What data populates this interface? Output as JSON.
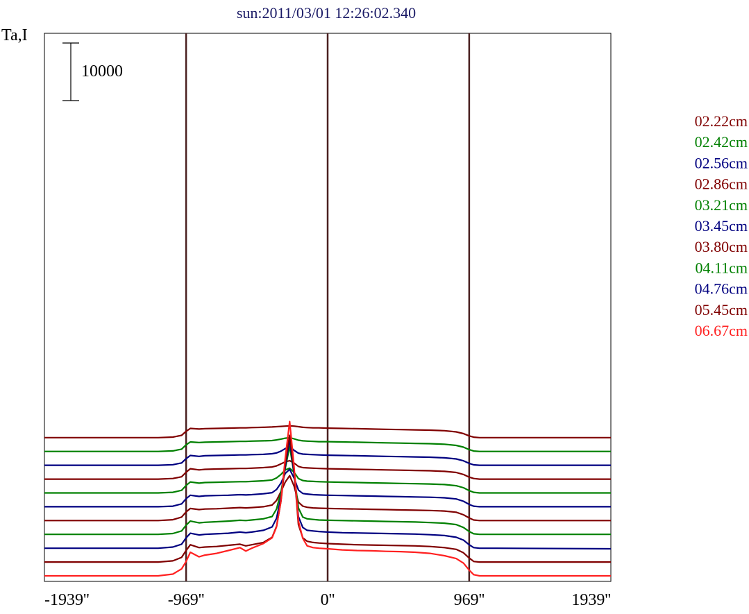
{
  "chart_data": {
    "type": "line",
    "title": "sun:2011/03/01 12:26:02.340",
    "title_color": "#1a1a66",
    "ylabel": "Ta,I",
    "x_unit": "arcsec",
    "xlim": [
      -1939,
      1939
    ],
    "x_ticks": [
      -1939,
      -969,
      0,
      969,
      1939
    ],
    "x_tick_labels": [
      "-1939''",
      "-969''",
      "0''",
      "969''",
      "1939''"
    ],
    "vertical_lines_at": [
      -969,
      0,
      969
    ],
    "vertical_line_color": "#4a2020",
    "scale_bar": {
      "label": "10000",
      "value": 10000
    },
    "stack_offset": 2400,
    "x": [
      -1939,
      -1160,
      -1060,
      -1000,
      -969,
      -940,
      -880,
      -840,
      -760,
      -680,
      -600,
      -560,
      -520,
      -440,
      -380,
      -350,
      -320,
      -290,
      -260,
      -230,
      -200,
      -170,
      -140,
      -100,
      -60,
      0,
      100,
      200,
      300,
      400,
      500,
      600,
      700,
      800,
      880,
      930,
      969,
      1000,
      1040,
      1160,
      1939
    ],
    "series": [
      {
        "name": "06.67cm",
        "color": "#ff2020",
        "baseline": 0,
        "values": [
          0,
          0,
          300,
          1200,
          2500,
          4100,
          3300,
          3600,
          3900,
          4400,
          4900,
          4300,
          4800,
          5600,
          6600,
          8500,
          13000,
          20500,
          26800,
          19000,
          9500,
          6500,
          5200,
          4900,
          4800,
          4700,
          4500,
          4400,
          4350,
          4250,
          4200,
          4100,
          3900,
          3500,
          3000,
          2200,
          1000,
          200,
          0,
          0,
          0
        ]
      },
      {
        "name": "05.45cm",
        "color": "#800000",
        "baseline": 2400,
        "values": [
          0,
          0,
          200,
          800,
          2000,
          3000,
          2500,
          2600,
          2700,
          2900,
          3100,
          2800,
          3000,
          3400,
          4300,
          6200,
          10500,
          17300,
          22000,
          16000,
          6500,
          4200,
          3600,
          3400,
          3300,
          3200,
          3100,
          3000,
          2950,
          2900,
          2850,
          2800,
          2700,
          2500,
          2200,
          1600,
          700,
          100,
          0,
          0,
          0
        ]
      },
      {
        "name": "04.76cm",
        "color": "#000080",
        "baseline": 4800,
        "values": [
          0,
          0,
          200,
          700,
          1800,
          2600,
          2300,
          2400,
          2500,
          2600,
          2800,
          2700,
          2800,
          3100,
          3700,
          5200,
          8800,
          14300,
          18900,
          13000,
          5500,
          3600,
          3100,
          3000,
          2900,
          2800,
          2700,
          2650,
          2600,
          2550,
          2500,
          2450,
          2350,
          2200,
          1900,
          1400,
          600,
          100,
          0,
          0,
          -100
        ]
      },
      {
        "name": "04.11cm",
        "color": "#008000",
        "baseline": 7200,
        "values": [
          0,
          0,
          150,
          600,
          1600,
          2300,
          2000,
          2100,
          2200,
          2300,
          2450,
          2400,
          2500,
          2700,
          3100,
          4400,
          7300,
          11500,
          15300,
          10500,
          4600,
          3000,
          2700,
          2600,
          2500,
          2450,
          2400,
          2350,
          2300,
          2250,
          2200,
          2150,
          2050,
          1950,
          1700,
          1200,
          500,
          100,
          0,
          0,
          0
        ]
      },
      {
        "name": "03.80cm",
        "color": "#800000",
        "baseline": 9600,
        "values": [
          0,
          0,
          150,
          600,
          1500,
          2100,
          1900,
          2000,
          2050,
          2150,
          2250,
          2200,
          2250,
          2400,
          2700,
          3500,
          5000,
          6700,
          7800,
          6000,
          3200,
          2500,
          2300,
          2200,
          2150,
          2100,
          2050,
          2000,
          1950,
          1900,
          1850,
          1800,
          1750,
          1650,
          1450,
          1000,
          450,
          100,
          0,
          0,
          0
        ]
      },
      {
        "name": "03.45cm",
        "color": "#000080",
        "baseline": 12000,
        "values": [
          0,
          0,
          100,
          500,
          1400,
          2000,
          1800,
          1900,
          1950,
          2000,
          2100,
          2050,
          2100,
          2250,
          2450,
          3000,
          4100,
          5800,
          6500,
          5000,
          2900,
          2300,
          2200,
          2100,
          2050,
          2000,
          1950,
          1900,
          1850,
          1800,
          1750,
          1700,
          1650,
          1550,
          1350,
          950,
          400,
          100,
          0,
          0,
          0
        ]
      },
      {
        "name": "03.21cm",
        "color": "#008000",
        "baseline": 14400,
        "values": [
          0,
          0,
          100,
          450,
          1300,
          1900,
          1700,
          1800,
          1850,
          1900,
          1950,
          1950,
          2000,
          2100,
          2250,
          2600,
          3200,
          4000,
          4300,
          3600,
          2500,
          2150,
          2050,
          2000,
          1950,
          1900,
          1850,
          1800,
          1750,
          1700,
          1650,
          1600,
          1550,
          1450,
          1250,
          900,
          400,
          100,
          0,
          0,
          0
        ]
      },
      {
        "name": "02.86cm",
        "color": "#800000",
        "baseline": 16800,
        "values": [
          0,
          0,
          100,
          400,
          1200,
          1800,
          1600,
          1700,
          1750,
          1800,
          1850,
          1850,
          1900,
          2000,
          2100,
          2300,
          2650,
          3000,
          3200,
          2800,
          2200,
          2000,
          1950,
          1900,
          1850,
          1800,
          1750,
          1700,
          1650,
          1600,
          1550,
          1500,
          1450,
          1350,
          1150,
          800,
          350,
          100,
          0,
          0,
          0
        ]
      },
      {
        "name": "02.56cm",
        "color": "#000080",
        "baseline": 19200,
        "values": [
          0,
          0,
          100,
          400,
          1150,
          1700,
          1550,
          1650,
          1700,
          1750,
          1800,
          1800,
          1850,
          1900,
          2000,
          2150,
          2450,
          2900,
          3300,
          2600,
          2100,
          1950,
          1900,
          1850,
          1800,
          1750,
          1700,
          1650,
          1600,
          1550,
          1500,
          1450,
          1400,
          1300,
          1100,
          780,
          330,
          80,
          0,
          0,
          0
        ]
      },
      {
        "name": "02.42cm",
        "color": "#008000",
        "baseline": 21600,
        "values": [
          0,
          0,
          100,
          400,
          1150,
          1650,
          1550,
          1600,
          1650,
          1700,
          1750,
          1750,
          1800,
          1850,
          1900,
          2000,
          2150,
          2300,
          2400,
          2200,
          1950,
          1850,
          1800,
          1750,
          1700,
          1700,
          1650,
          1600,
          1550,
          1500,
          1450,
          1400,
          1350,
          1250,
          1050,
          750,
          320,
          80,
          0,
          0,
          0
        ]
      },
      {
        "name": "02.22cm",
        "color": "#800000",
        "baseline": 24000,
        "values": [
          0,
          0,
          100,
          400,
          1100,
          1600,
          1500,
          1550,
          1600,
          1650,
          1700,
          1700,
          1750,
          1800,
          1850,
          1900,
          1950,
          2000,
          2050,
          2000,
          1900,
          1800,
          1750,
          1700,
          1700,
          1650,
          1600,
          1550,
          1500,
          1450,
          1400,
          1350,
          1300,
          1200,
          1000,
          700,
          300,
          80,
          0,
          0,
          0
        ]
      }
    ]
  }
}
